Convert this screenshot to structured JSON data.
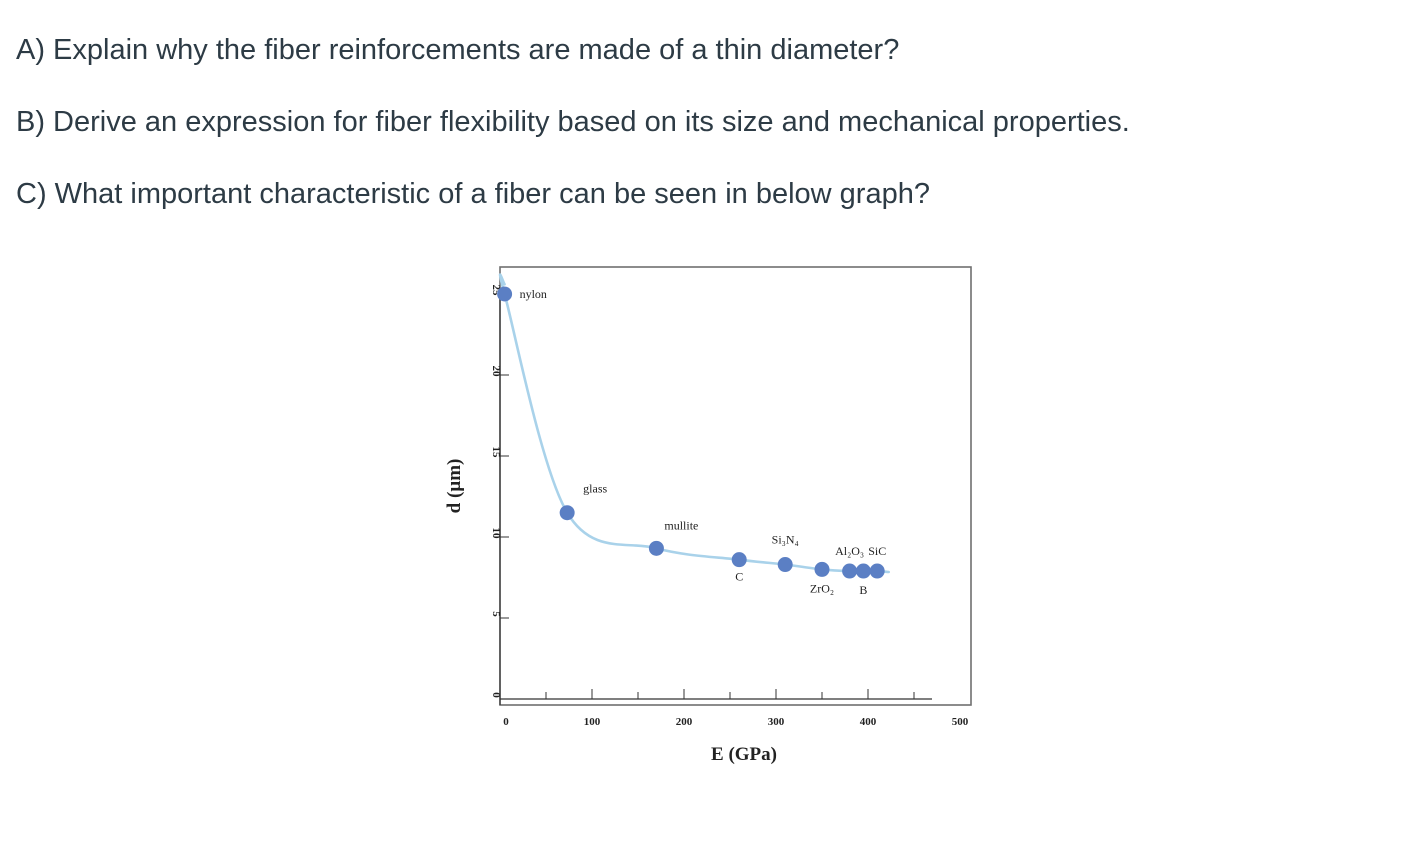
{
  "questions": {
    "a": "A) Explain why the fiber reinforcements are made of a thin diameter?",
    "b": "B) Derive an expression for fiber flexibility based on its size and mechanical properties.",
    "c": "C) What important characteristic of a fiber can be seen in below graph?"
  },
  "chart_data": {
    "type": "scatter",
    "xlabel": "E (GPa)",
    "ylabel": "d (µm)",
    "xlim": [
      0,
      500
    ],
    "ylim": [
      0,
      25
    ],
    "x_ticks": [
      "0",
      "100",
      "200",
      "300",
      "400",
      "500"
    ],
    "y_ticks": [
      "0",
      "5",
      "10",
      "15",
      "20",
      "25"
    ],
    "grid": false,
    "marker_color": "#5b7fc4",
    "curve_color": "#a9d2ea",
    "points": [
      {
        "label": "nylon",
        "x": 5,
        "y": 25
      },
      {
        "label": "glass",
        "x": 73,
        "y": 11.5
      },
      {
        "label": "mullite",
        "x": 170,
        "y": 9.3
      },
      {
        "label": "C",
        "x": 260,
        "y": 8.6
      },
      {
        "label": "Si₃N₄",
        "x": 310,
        "y": 8.3
      },
      {
        "label": "ZrO₂",
        "x": 350,
        "y": 8.0
      },
      {
        "label": "Al₂O₃",
        "x": 380,
        "y": 7.9
      },
      {
        "label": "B",
        "x": 395,
        "y": 7.9
      },
      {
        "label": "SiC",
        "x": 410,
        "y": 7.9
      }
    ]
  }
}
